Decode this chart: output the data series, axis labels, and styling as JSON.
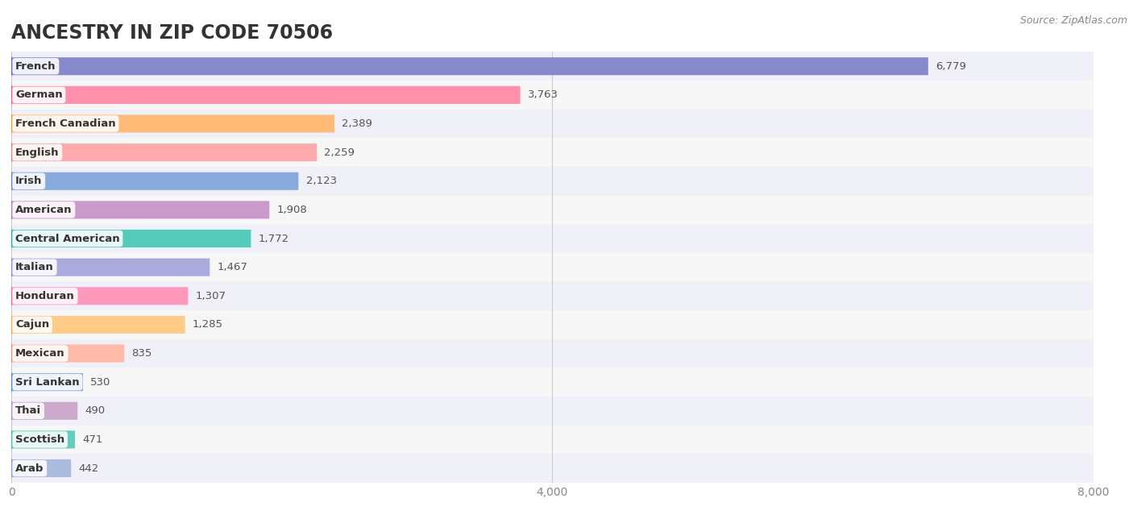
{
  "title": "ANCESTRY IN ZIP CODE 70506",
  "source": "Source: ZipAtlas.com",
  "categories": [
    "French",
    "German",
    "French Canadian",
    "English",
    "Irish",
    "American",
    "Central American",
    "Italian",
    "Honduran",
    "Cajun",
    "Mexican",
    "Sri Lankan",
    "Thai",
    "Scottish",
    "Arab"
  ],
  "values": [
    6779,
    3763,
    2389,
    2259,
    2123,
    1908,
    1772,
    1467,
    1307,
    1285,
    835,
    530,
    490,
    471,
    442
  ],
  "bar_colors": [
    "#8888cc",
    "#ff8faa",
    "#ffbb77",
    "#ffaaaa",
    "#88aadd",
    "#cc99cc",
    "#55ccbb",
    "#aaaadd",
    "#ff99bb",
    "#ffcc88",
    "#ffbbaa",
    "#88aadd",
    "#ccaacc",
    "#66ccbb",
    "#aabbdd"
  ],
  "dot_colors": [
    "#6666bb",
    "#ee5588",
    "#ee9933",
    "#ee7777",
    "#5588cc",
    "#aa77bb",
    "#33aa99",
    "#8888cc",
    "#ee6688",
    "#ffaa44",
    "#ee8866",
    "#5588cc",
    "#aa88bb",
    "#44bbaa",
    "#8899cc"
  ],
  "xlim": [
    0,
    8000
  ],
  "xticks": [
    0,
    4000,
    8000
  ],
  "bar_height": 0.62,
  "background_color": "#ffffff",
  "title_fontsize": 17,
  "label_fontsize": 9.5,
  "value_fontsize": 9.5
}
